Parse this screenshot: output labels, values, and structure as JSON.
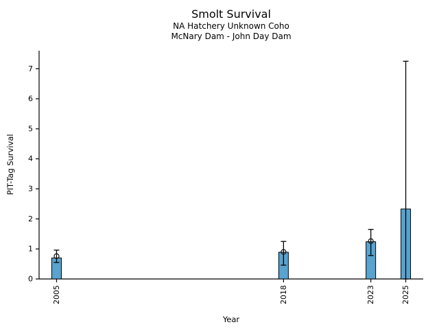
{
  "header": {
    "title": "Smolt Survival",
    "subtitle1": "NA Hatchery Unknown Coho",
    "subtitle2": "McNary Dam - John Day Dam"
  },
  "chart_data": {
    "type": "bar",
    "title": "Smolt Survival",
    "subtitles": [
      "NA Hatchery Unknown Coho",
      "McNary Dam - John Day Dam"
    ],
    "xlabel": "Year",
    "ylabel": "PIT-Tag Survival",
    "xlim": [
      2004,
      2026
    ],
    "ylim": [
      0,
      7.6
    ],
    "yticks": [
      0,
      1,
      2,
      3,
      4,
      5,
      6,
      7
    ],
    "xticks": [
      2005,
      2018,
      2023,
      2025
    ],
    "grid": false,
    "legend": null,
    "colors": {
      "bar_fill": "#58A3CF",
      "bar_edge": "#000000",
      "error_bar": "#000000",
      "marker_edge": "#1a1a1a",
      "axis": "#000000",
      "text": "#000000"
    },
    "series": [
      {
        "year": 2005,
        "value": 0.7,
        "marker": 0.76,
        "err_low": 0.55,
        "err_high": 0.96
      },
      {
        "year": 2018,
        "value": 0.89,
        "marker": 0.9,
        "err_low": 0.46,
        "err_high": 1.25
      },
      {
        "year": 2023,
        "value": 1.24,
        "marker": 1.26,
        "err_low": 0.78,
        "err_high": 1.65
      },
      {
        "year": 2025,
        "value": 2.33,
        "marker": null,
        "err_low": 0.0,
        "err_high": 7.25
      }
    ]
  }
}
